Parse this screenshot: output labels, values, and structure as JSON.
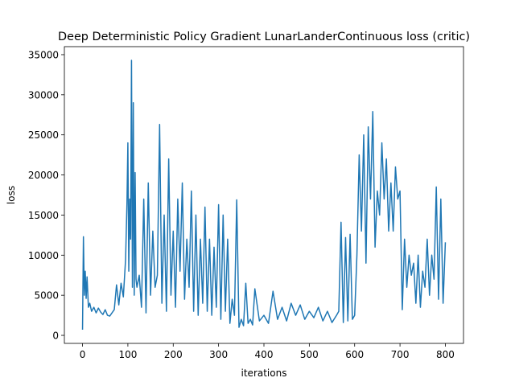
{
  "chart_data": {
    "type": "line",
    "title": "Deep Deterministic Policy Gradient LunarLanderContinuous loss (critic)",
    "xlabel": "iterations",
    "ylabel": "loss",
    "xlim": [
      -40,
      840
    ],
    "ylim": [
      -1000,
      36000
    ],
    "xticks": [
      0,
      100,
      200,
      300,
      400,
      500,
      600,
      700,
      800
    ],
    "yticks": [
      0,
      5000,
      10000,
      15000,
      20000,
      25000,
      30000,
      35000
    ],
    "grid": false,
    "series": [
      {
        "color": "#1f77b4",
        "x": [
          0,
          2,
          4,
          6,
          8,
          10,
          13,
          16,
          20,
          25,
          30,
          35,
          40,
          45,
          50,
          55,
          60,
          65,
          70,
          75,
          80,
          85,
          90,
          95,
          98,
          100,
          102,
          104,
          106,
          108,
          110,
          112,
          114,
          116,
          118,
          120,
          125,
          130,
          135,
          140,
          145,
          150,
          155,
          160,
          165,
          170,
          175,
          180,
          185,
          190,
          195,
          200,
          205,
          210,
          215,
          220,
          225,
          230,
          235,
          240,
          245,
          250,
          255,
          260,
          265,
          270,
          275,
          280,
          285,
          290,
          295,
          300,
          305,
          310,
          315,
          320,
          325,
          330,
          335,
          340,
          345,
          350,
          355,
          360,
          365,
          370,
          375,
          380,
          390,
          400,
          410,
          420,
          430,
          440,
          450,
          460,
          470,
          480,
          490,
          500,
          510,
          520,
          530,
          540,
          550,
          560,
          565,
          570,
          575,
          580,
          585,
          590,
          595,
          600,
          605,
          610,
          615,
          620,
          625,
          630,
          635,
          640,
          645,
          650,
          655,
          660,
          665,
          670,
          675,
          680,
          685,
          690,
          695,
          700,
          705,
          710,
          715,
          720,
          725,
          730,
          735,
          740,
          745,
          750,
          755,
          760,
          765,
          770,
          775,
          780,
          785,
          790,
          795,
          800
        ],
        "y": [
          700,
          12300,
          5000,
          8000,
          4600,
          7300,
          3500,
          4000,
          3000,
          3500,
          2800,
          3400,
          2900,
          2600,
          3200,
          2500,
          2400,
          2800,
          3200,
          6300,
          3800,
          6500,
          4800,
          9500,
          16500,
          24000,
          8000,
          17000,
          12000,
          34300,
          6000,
          29000,
          5000,
          20300,
          7000,
          6000,
          7500,
          3500,
          17000,
          2800,
          19000,
          5000,
          13000,
          6000,
          7500,
          26300,
          4000,
          15000,
          3000,
          22000,
          5000,
          13000,
          3500,
          17000,
          8000,
          19000,
          4500,
          12000,
          6000,
          18000,
          3000,
          15000,
          2500,
          12000,
          4000,
          16000,
          3000,
          12000,
          2500,
          11000,
          3500,
          16300,
          2000,
          15000,
          3000,
          12000,
          1500,
          4500,
          2500,
          16900,
          1000,
          2000,
          1200,
          6500,
          1500,
          2000,
          1300,
          5800,
          1800,
          2500,
          1500,
          5500,
          2000,
          3500,
          1800,
          4000,
          2500,
          3800,
          2000,
          3000,
          2200,
          3500,
          1800,
          3000,
          1600,
          2500,
          3000,
          14100,
          1600,
          12200,
          1800,
          12600,
          2000,
          2500,
          10000,
          22500,
          13000,
          25000,
          9000,
          26000,
          17000,
          27900,
          11000,
          18000,
          15000,
          24000,
          17000,
          22000,
          13000,
          19000,
          13000,
          21000,
          17000,
          18000,
          3200,
          12000,
          6000,
          10000,
          7500,
          9000,
          4000,
          10000,
          3500,
          8000,
          6000,
          12000,
          5000,
          10000,
          7000,
          18500,
          4500,
          17000,
          4000,
          11600
        ]
      }
    ]
  }
}
